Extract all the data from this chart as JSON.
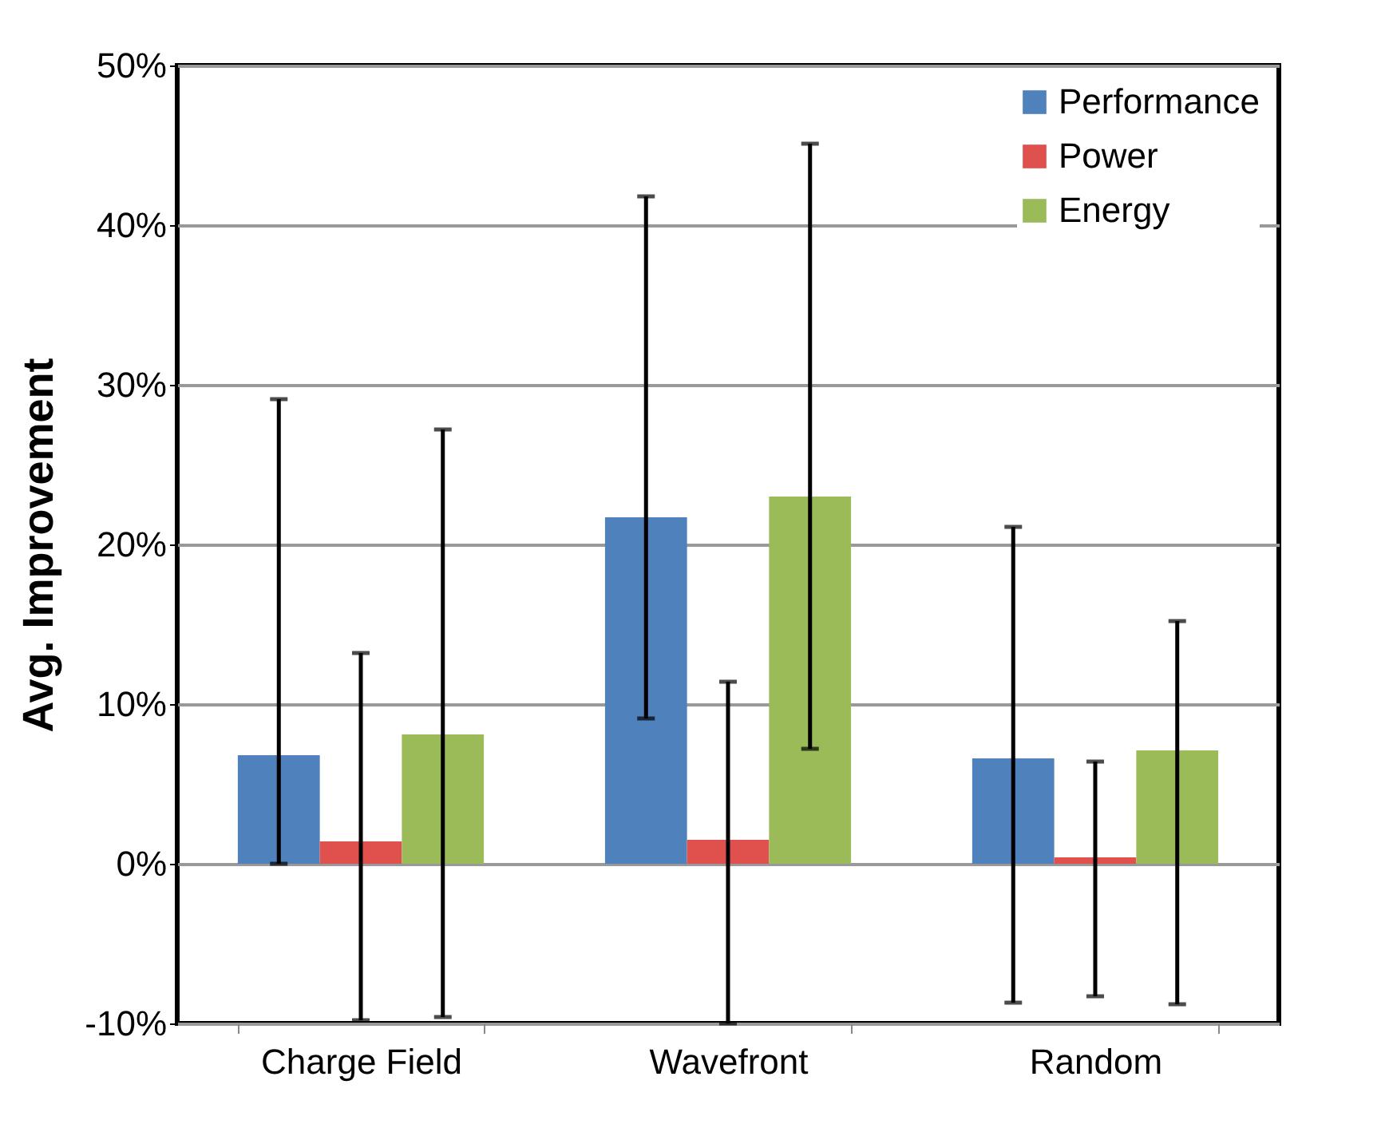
{
  "chart_data": {
    "type": "bar",
    "ylabel": "Avg. Improvement",
    "categories": [
      "Charge Field",
      "Wavefront",
      "Random"
    ],
    "series": [
      {
        "name": "Performance",
        "color": "#4f81bd",
        "values": [
          6.8,
          21.7,
          6.6
        ],
        "errors": [
          [
            0,
            29.1
          ],
          [
            9.1,
            41.8
          ],
          [
            -8.7,
            21.1
          ]
        ]
      },
      {
        "name": "Power",
        "color": "#e0504d",
        "values": [
          1.4,
          1.5,
          0.4
        ],
        "errors": [
          [
            -9.8,
            13.2
          ],
          [
            -10,
            11.4
          ],
          [
            -8.3,
            6.4
          ]
        ]
      },
      {
        "name": "Energy",
        "color": "#9bbb59",
        "values": [
          8.1,
          23,
          7.1
        ],
        "errors": [
          [
            -9.6,
            27.2
          ],
          [
            7.2,
            45.1
          ],
          [
            -8.8,
            15.2
          ]
        ]
      }
    ],
    "ylim": [
      -10,
      50
    ],
    "yticks": [
      {
        "value": -10,
        "label": "-10%"
      },
      {
        "value": 0,
        "label": "0%"
      },
      {
        "value": 10,
        "label": "10%"
      },
      {
        "value": 20,
        "label": "20%"
      },
      {
        "value": 30,
        "label": "30%"
      },
      {
        "value": 40,
        "label": "40%"
      },
      {
        "value": 50,
        "label": "50%"
      }
    ],
    "grid": "y",
    "legend": "top right"
  }
}
